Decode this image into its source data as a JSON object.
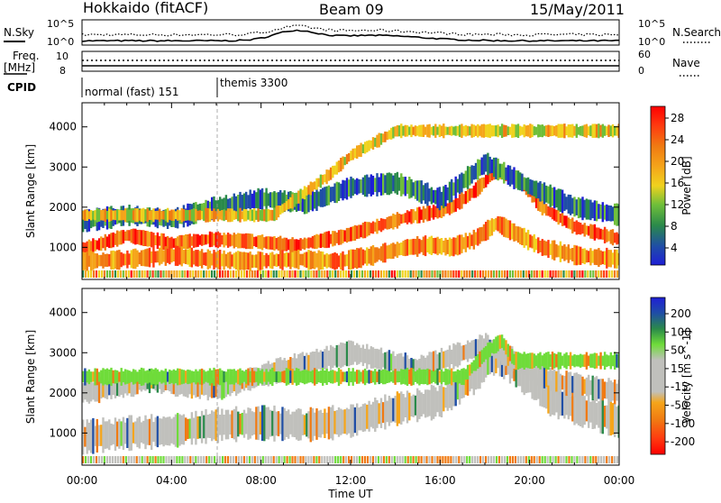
{
  "header": {
    "station": "Hokkaido (fitACF)",
    "beam": "Beam 09",
    "date": "15/May/2011"
  },
  "top_panels": {
    "nsky_label": "N.Sky",
    "nsky_ticks": [
      "10^5",
      "10^0"
    ],
    "nsearch_label": "N.Search",
    "nsearch_ticks": [
      "10^5",
      "10^0"
    ],
    "freq_label": "Freq.",
    "freq_unit": "[MHz]",
    "freq_ticks": [
      "10",
      "8"
    ],
    "nave_label": "Nave",
    "nave_ticks": [
      "60",
      "0"
    ],
    "cpid_label": "CPID",
    "cpid_modes": [
      "normal (fast) 151",
      "themis 3300"
    ]
  },
  "colors": {
    "power_scale": [
      "#1f1fd6",
      "#1f4ea6",
      "#2a8a4a",
      "#6fbf3a",
      "#f0d21e",
      "#f5a51a",
      "#f07a12",
      "#ff3a10",
      "#ff0000"
    ],
    "velocity_scale": [
      "#1f1fd6",
      "#1f4ea6",
      "#2a8a4a",
      "#6fdc3a",
      "#c0c0bc",
      "#c0c0bc",
      "#f5a51a",
      "#f07a12",
      "#ff3a10",
      "#ff0000"
    ]
  },
  "chart_data": [
    {
      "type": "heatmap",
      "name": "power",
      "ylabel": "Slant Range [km]",
      "xlabel": "",
      "yticks": [
        1000,
        2000,
        3000,
        4000
      ],
      "ylim": [
        200,
        4600
      ],
      "xticks": [
        "00:00",
        "04:00",
        "08:00",
        "12:00",
        "16:00",
        "20:00",
        "00:00"
      ],
      "xlim_hours": [
        0,
        24
      ],
      "colorbar_label": "Power [dB]",
      "colorbar_ticks": [
        "28",
        "24",
        "20",
        "16",
        "12",
        "8",
        "4"
      ],
      "bands": [
        {
          "x": [
            0.0,
            2.0,
            4.0,
            5.6,
            7.5,
            9.5,
            11.5,
            13.0,
            14.5,
            15.5,
            16.5,
            17.5,
            18.5,
            19.5,
            20.5,
            22.0,
            24.0
          ],
          "y": [
            950,
            1300,
            1100,
            1200,
            1150,
            1050,
            1250,
            1500,
            1750,
            1850,
            2000,
            2400,
            2900,
            2700,
            2000,
            1500,
            1200
          ],
          "width": 320,
          "level": 28
        },
        {
          "x": [
            0.0,
            2.0,
            4.0,
            5.6,
            7.5,
            9.5,
            11.5,
            13.0,
            14.5,
            15.5,
            16.5,
            17.5,
            18.5,
            19.5,
            20.5,
            22.0,
            24.0
          ],
          "y": [
            650,
            700,
            800,
            700,
            650,
            700,
            650,
            800,
            1000,
            1050,
            1000,
            1200,
            1600,
            1300,
            1000,
            800,
            700
          ],
          "width": 400,
          "level": 26
        },
        {
          "x": [
            0.0,
            2.0,
            4.0,
            6.0,
            8.0,
            10.0,
            12.0,
            14.0,
            16.0,
            18.0,
            20.0,
            22.0,
            24.0
          ],
          "y": [
            1650,
            1800,
            1700,
            2000,
            2200,
            2100,
            2500,
            2600,
            2200,
            3100,
            2500,
            2000,
            1800
          ],
          "width": 450,
          "level": 14
        },
        {
          "x": [
            8.5,
            10.0,
            11.0,
            12.0,
            13.0,
            14.0
          ],
          "y": [
            1800,
            2400,
            2800,
            3300,
            3600,
            3900
          ],
          "width": 280,
          "level": 22
        }
      ]
    },
    {
      "type": "heatmap",
      "name": "velocity",
      "ylabel": "Slant Range [km]",
      "xlabel": "Time UT",
      "yticks": [
        1000,
        2000,
        3000,
        4000
      ],
      "ylim": [
        200,
        4600
      ],
      "xticks": [
        "00:00",
        "04:00",
        "08:00",
        "12:00",
        "16:00",
        "20:00",
        "00:00"
      ],
      "xlim_hours": [
        0,
        24
      ],
      "colorbar_label": "Velocity [m s^-1]",
      "colorbar_ticks": [
        "200",
        "100",
        "50",
        "15",
        "-15",
        "-50",
        "-100",
        "-200"
      ],
      "bands": [
        {
          "x": [
            0.0,
            2.0,
            4.0,
            6.0,
            8.0,
            10.0,
            12.0,
            14.0,
            16.0,
            17.5,
            18.5,
            19.5,
            21.0,
            24.0
          ],
          "y": [
            900,
            1000,
            1050,
            1200,
            1250,
            1200,
            1300,
            1600,
            1800,
            2400,
            2900,
            2500,
            1800,
            1300
          ],
          "width": 700,
          "level": 0
        },
        {
          "x": [
            0.0,
            3.0,
            6.0,
            9.0,
            12.0,
            15.0,
            18.0,
            21.0,
            24.0
          ],
          "y": [
            2000,
            2300,
            2100,
            2600,
            3000,
            2600,
            3200,
            2300,
            2000
          ],
          "width": 500,
          "level": 0
        },
        {
          "x": [
            17.0,
            18.0,
            18.7,
            19.3
          ],
          "y": [
            2400,
            3000,
            3300,
            2800
          ],
          "width": 350,
          "level": 60
        }
      ]
    }
  ]
}
